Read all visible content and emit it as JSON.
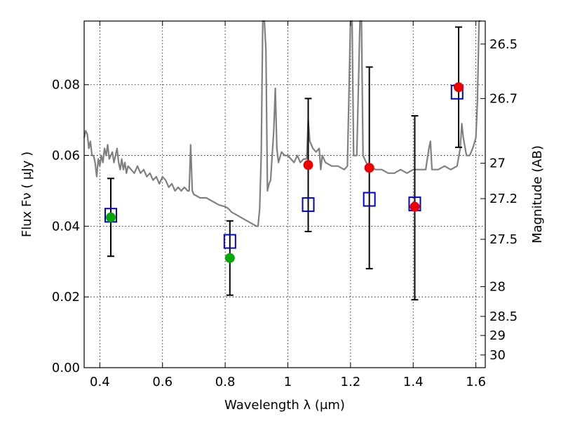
{
  "chart_data": {
    "type": "scatter",
    "title": "",
    "xlabel": "Wavelength  λ (μm)",
    "ylabel": "Flux  Fν  ( μJy )",
    "ylabel_right": "Magnitude (AB)",
    "xlim": [
      0.35,
      1.63
    ],
    "ylim": [
      0.0,
      0.098
    ],
    "grid": true,
    "x_ticks": [
      0.4,
      0.6,
      0.8,
      1.0,
      1.2,
      1.4,
      1.6
    ],
    "x_tick_labels": [
      "0.4",
      "0.6",
      "0.8",
      "1",
      "1.2",
      "1.4",
      "1.6"
    ],
    "y_ticks": [
      0.0,
      0.02,
      0.04,
      0.06,
      0.08
    ],
    "y_tick_labels": [
      "0.00",
      "0.02",
      "0.04",
      "0.06",
      "0.08"
    ],
    "mag_ticks": [
      {
        "label": "26.5",
        "flux": 0.0915
      },
      {
        "label": "26.7",
        "flux": 0.0761
      },
      {
        "label": "27",
        "flux": 0.0578
      },
      {
        "label": "27.2",
        "flux": 0.0478
      },
      {
        "label": "27.5",
        "flux": 0.0363
      },
      {
        "label": "28",
        "flux": 0.0229
      },
      {
        "label": "28.5",
        "flux": 0.0145
      },
      {
        "label": "29",
        "flux": 0.0091
      },
      {
        "label": "30",
        "flux": 0.0036
      }
    ],
    "series": [
      {
        "kind": "spectrum",
        "color": "#808080",
        "points": [
          [
            0.35,
            0.065
          ],
          [
            0.355,
            0.067
          ],
          [
            0.36,
            0.066
          ],
          [
            0.365,
            0.062
          ],
          [
            0.37,
            0.064
          ],
          [
            0.375,
            0.06
          ],
          [
            0.38,
            0.06
          ],
          [
            0.385,
            0.058
          ],
          [
            0.39,
            0.054
          ],
          [
            0.395,
            0.059
          ],
          [
            0.4,
            0.057
          ],
          [
            0.405,
            0.06
          ],
          [
            0.41,
            0.058
          ],
          [
            0.415,
            0.062
          ],
          [
            0.42,
            0.06
          ],
          [
            0.425,
            0.063
          ],
          [
            0.43,
            0.059
          ],
          [
            0.435,
            0.06
          ],
          [
            0.44,
            0.061
          ],
          [
            0.445,
            0.058
          ],
          [
            0.45,
            0.06
          ],
          [
            0.455,
            0.062
          ],
          [
            0.46,
            0.058
          ],
          [
            0.465,
            0.056
          ],
          [
            0.47,
            0.059
          ],
          [
            0.475,
            0.056
          ],
          [
            0.48,
            0.058
          ],
          [
            0.485,
            0.055
          ],
          [
            0.49,
            0.057
          ],
          [
            0.5,
            0.056
          ],
          [
            0.51,
            0.055
          ],
          [
            0.52,
            0.057
          ],
          [
            0.53,
            0.055
          ],
          [
            0.54,
            0.056
          ],
          [
            0.55,
            0.054
          ],
          [
            0.56,
            0.055
          ],
          [
            0.57,
            0.053
          ],
          [
            0.58,
            0.054
          ],
          [
            0.59,
            0.052
          ],
          [
            0.6,
            0.054
          ],
          [
            0.61,
            0.053
          ],
          [
            0.62,
            0.051
          ],
          [
            0.63,
            0.052
          ],
          [
            0.64,
            0.05
          ],
          [
            0.65,
            0.051
          ],
          [
            0.66,
            0.05
          ],
          [
            0.67,
            0.051
          ],
          [
            0.68,
            0.05
          ],
          [
            0.685,
            0.05
          ],
          [
            0.69,
            0.063
          ],
          [
            0.695,
            0.05
          ],
          [
            0.7,
            0.049
          ],
          [
            0.72,
            0.048
          ],
          [
            0.74,
            0.048
          ],
          [
            0.76,
            0.047
          ],
          [
            0.78,
            0.046
          ],
          [
            0.8,
            0.0455
          ],
          [
            0.81,
            0.045
          ],
          [
            0.82,
            0.044
          ],
          [
            0.84,
            0.043
          ],
          [
            0.86,
            0.042
          ],
          [
            0.88,
            0.041
          ],
          [
            0.89,
            0.0405
          ],
          [
            0.9,
            0.04
          ],
          [
            0.905,
            0.04
          ],
          [
            0.91,
            0.045
          ],
          [
            0.915,
            0.06
          ],
          [
            0.92,
            0.098
          ],
          [
            0.925,
            0.098
          ],
          [
            0.93,
            0.09
          ],
          [
            0.935,
            0.05
          ],
          [
            0.94,
            0.052
          ],
          [
            0.945,
            0.053
          ],
          [
            0.95,
            0.06
          ],
          [
            0.955,
            0.067
          ],
          [
            0.96,
            0.079
          ],
          [
            0.965,
            0.062
          ],
          [
            0.97,
            0.058
          ],
          [
            0.98,
            0.061
          ],
          [
            0.99,
            0.06
          ],
          [
            1.0,
            0.06
          ],
          [
            1.01,
            0.059
          ],
          [
            1.02,
            0.058
          ],
          [
            1.03,
            0.06
          ],
          [
            1.04,
            0.058
          ],
          [
            1.05,
            0.059
          ],
          [
            1.06,
            0.059
          ],
          [
            1.065,
            0.07
          ],
          [
            1.07,
            0.064
          ],
          [
            1.08,
            0.062
          ],
          [
            1.09,
            0.061
          ],
          [
            1.1,
            0.062
          ],
          [
            1.105,
            0.056
          ],
          [
            1.11,
            0.06
          ],
          [
            1.12,
            0.058
          ],
          [
            1.14,
            0.057
          ],
          [
            1.16,
            0.057
          ],
          [
            1.18,
            0.056
          ],
          [
            1.19,
            0.057
          ],
          [
            1.2,
            0.098
          ],
          [
            1.205,
            0.098
          ],
          [
            1.21,
            0.06
          ],
          [
            1.22,
            0.06
          ],
          [
            1.23,
            0.098
          ],
          [
            1.235,
            0.098
          ],
          [
            1.24,
            0.06
          ],
          [
            1.25,
            0.058
          ],
          [
            1.26,
            0.057
          ],
          [
            1.28,
            0.056
          ],
          [
            1.3,
            0.056
          ],
          [
            1.32,
            0.055
          ],
          [
            1.34,
            0.055
          ],
          [
            1.36,
            0.056
          ],
          [
            1.38,
            0.055
          ],
          [
            1.4,
            0.056
          ],
          [
            1.42,
            0.056
          ],
          [
            1.44,
            0.056
          ],
          [
            1.45,
            0.062
          ],
          [
            1.455,
            0.064
          ],
          [
            1.46,
            0.056
          ],
          [
            1.48,
            0.056
          ],
          [
            1.5,
            0.057
          ],
          [
            1.52,
            0.056
          ],
          [
            1.54,
            0.057
          ],
          [
            1.55,
            0.062
          ],
          [
            1.555,
            0.069
          ],
          [
            1.56,
            0.065
          ],
          [
            1.57,
            0.06
          ],
          [
            1.58,
            0.06
          ],
          [
            1.59,
            0.062
          ],
          [
            1.6,
            0.065
          ],
          [
            1.605,
            0.075
          ],
          [
            1.61,
            0.098
          ],
          [
            1.615,
            0.098
          ]
        ]
      },
      {
        "kind": "model_squares",
        "color": "#0000cc",
        "points": [
          [
            0.435,
            0.043
          ],
          [
            0.815,
            0.0356
          ],
          [
            1.065,
            0.046
          ],
          [
            1.26,
            0.0475
          ],
          [
            1.405,
            0.0462
          ],
          [
            1.54,
            0.0778
          ]
        ]
      },
      {
        "kind": "observed",
        "color": "#00aa00",
        "points": [
          [
            0.435,
            0.0425,
            0.0315,
            0.0535
          ],
          [
            0.815,
            0.031,
            0.0205,
            0.0415
          ]
        ]
      },
      {
        "kind": "observed",
        "color": "#ee0000",
        "points": [
          [
            1.065,
            0.0573,
            0.0385,
            0.0761
          ],
          [
            1.26,
            0.0565,
            0.028,
            0.085
          ],
          [
            1.405,
            0.0455,
            0.0192,
            0.0712
          ],
          [
            1.545,
            0.0793,
            0.0623,
            0.0963
          ]
        ]
      }
    ]
  }
}
